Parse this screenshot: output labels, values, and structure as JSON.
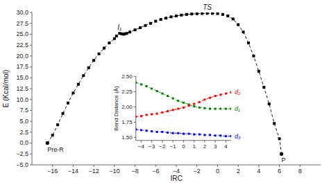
{
  "chart_data": [
    {
      "type": "line",
      "xlabel": "IRC",
      "ylabel": "E (Kcal/mol)",
      "xlim": [
        -18,
        10
      ],
      "ylim": [
        -5.0,
        30.0
      ],
      "xticks": [
        {
          "value": -16,
          "label": "−16"
        },
        {
          "value": -14,
          "label": "−14"
        },
        {
          "value": -12,
          "label": "−12"
        },
        {
          "value": -10,
          "label": "−10"
        },
        {
          "value": -8,
          "label": "−8"
        },
        {
          "value": -6,
          "label": "−6"
        },
        {
          "value": -4,
          "label": "−4"
        },
        {
          "value": -2,
          "label": "−2"
        },
        0,
        2,
        4,
        6,
        8
      ],
      "yticks": [
        {
          "value": -5.0,
          "label": "−5.0"
        },
        {
          "value": -2.5,
          "label": "−2.5"
        },
        {
          "value": 0.0,
          "label": "0.0"
        },
        2.5,
        {
          "value": 5.0,
          "label": "5.0"
        },
        7.5,
        {
          "value": 10.0,
          "label": "10.0"
        },
        12.5,
        {
          "value": 15.0,
          "label": "15.0"
        },
        17.5,
        {
          "value": 20.0,
          "label": "20.0"
        },
        22.5,
        {
          "value": 25.0,
          "label": "25.0"
        },
        27.5,
        {
          "value": 30.0,
          "label": "30.0"
        }
      ],
      "x": [
        -16.5,
        -16.0,
        -15.5,
        -15.0,
        -14.5,
        -14.0,
        -13.5,
        -13.0,
        -12.5,
        -12.0,
        -11.5,
        -11.0,
        -10.5,
        -10.0,
        -9.8,
        -9.5,
        -9.3,
        -9.1,
        -9.0,
        -8.8,
        -8.5,
        -8.0,
        -7.5,
        -7.0,
        -6.5,
        -6.0,
        -5.5,
        -5.0,
        -4.5,
        -4.0,
        -3.5,
        -3.0,
        -2.5,
        -2.0,
        -1.5,
        -1.0,
        -0.5,
        0.0,
        0.5,
        1.0,
        1.5,
        2.0,
        2.5,
        3.0,
        3.5,
        4.0,
        4.5,
        5.0,
        5.5,
        6.0,
        6.2
      ],
      "series": [
        {
          "color": "black",
          "marker": "square",
          "line_style": "dashed",
          "values": [
            0.0,
            1.8,
            4.2,
            6.8,
            9.2,
            11.5,
            13.5,
            15.5,
            17.3,
            19.0,
            20.5,
            21.8,
            23.0,
            24.0,
            24.6,
            25.2,
            25.1,
            25.0,
            25.1,
            25.2,
            25.5,
            26.0,
            26.5,
            27.0,
            27.5,
            28.0,
            28.4,
            28.7,
            29.0,
            29.2,
            29.4,
            29.55,
            29.65,
            29.72,
            29.77,
            29.8,
            29.8,
            29.75,
            29.55,
            29.2,
            28.5,
            27.2,
            25.5,
            23.0,
            20.0,
            16.5,
            12.8,
            9.0,
            4.5,
            1.0,
            -2.5
          ]
        }
      ],
      "annotations": [
        {
          "text": "TS",
          "x": -1.0,
          "y": 29.8
        },
        {
          "text": "I₁",
          "x": -9.5,
          "y": 25.2
        },
        {
          "text": "Pre-R",
          "x": -16.5,
          "y": 0.0,
          "marker": "circle"
        },
        {
          "text": "P",
          "x": 6.2,
          "y": -2.5,
          "marker": "circle"
        }
      ]
    },
    {
      "type": "line",
      "ylabel": "Bond Distance (Å)",
      "xlim": [
        -4.5,
        4.5
      ],
      "ylim": [
        1.45,
        2.5
      ],
      "xticks": [
        {
          "value": -4,
          "label": "−4"
        },
        {
          "value": -3,
          "label": "−3"
        },
        {
          "value": -2,
          "label": "−2"
        },
        {
          "value": -1,
          "label": "−1"
        },
        0,
        1,
        2,
        3,
        4
      ],
      "yticks": [
        {
          "value": 1.5,
          "label": "1.50"
        },
        1.75,
        {
          "value": 2.0,
          "label": "2.00"
        },
        2.25,
        {
          "value": 2.5,
          "label": "2.50"
        }
      ],
      "x": [
        -4.5,
        -4.0,
        -3.5,
        -3.0,
        -2.5,
        -2.0,
        -1.5,
        -1.0,
        -0.5,
        0.0,
        0.5,
        1.0,
        1.5,
        2.0,
        2.5,
        3.0,
        3.5,
        4.0,
        4.5
      ],
      "series": [
        {
          "name": "d₁",
          "color": "green",
          "marker": "square",
          "line_style": "dashed",
          "values": [
            2.4,
            2.37,
            2.34,
            2.3,
            2.26,
            2.22,
            2.18,
            2.14,
            2.1,
            2.07,
            2.04,
            2.01,
            1.99,
            1.98,
            1.97,
            1.97,
            1.97,
            1.97,
            1.97
          ]
        },
        {
          "name": "d₂",
          "color": "red",
          "marker": "square",
          "line_style": "dashed",
          "values": [
            1.84,
            1.85,
            1.87,
            1.88,
            1.89,
            1.91,
            1.93,
            1.95,
            1.97,
            1.99,
            2.02,
            2.05,
            2.08,
            2.12,
            2.15,
            2.18,
            2.2,
            2.22,
            2.24
          ]
        },
        {
          "name": "d₃",
          "color": "blue",
          "marker": "square",
          "line_style": "dashed",
          "values": [
            1.63,
            1.62,
            1.61,
            1.6,
            1.59,
            1.59,
            1.58,
            1.57,
            1.57,
            1.56,
            1.56,
            1.55,
            1.55,
            1.54,
            1.54,
            1.53,
            1.53,
            1.52,
            1.52
          ]
        }
      ]
    }
  ]
}
